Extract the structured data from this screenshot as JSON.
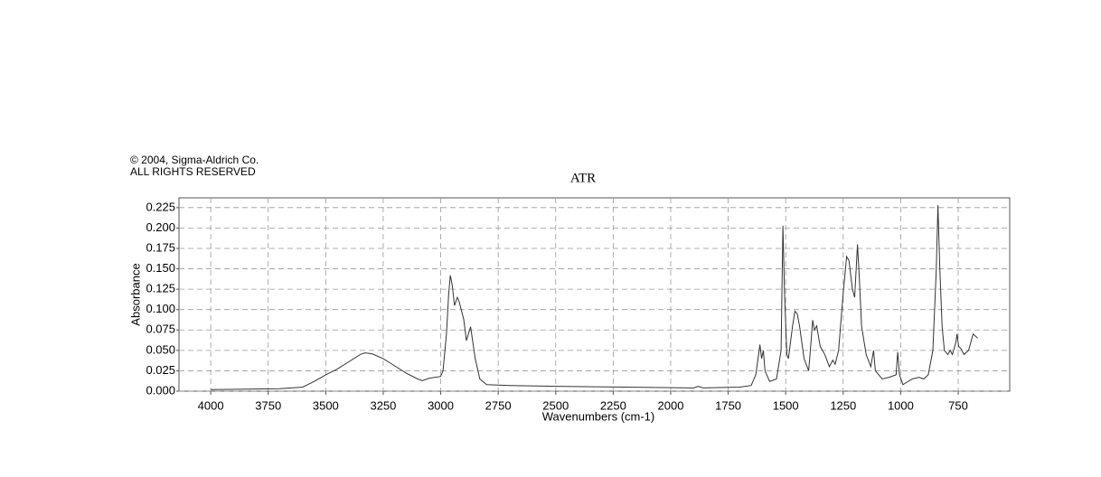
{
  "chart_data": {
    "type": "line",
    "copyright": [
      "© 2004, Sigma-Aldrich Co.",
      "ALL RIGHTS RESERVED"
    ],
    "title": "ATR",
    "xlabel": "Wavenumbers (cm-1)",
    "ylabel": "Absorbance",
    "xlim": [
      4138,
      526
    ],
    "ylim": [
      0,
      0.237
    ],
    "xticks": [
      4000,
      3750,
      3500,
      3250,
      3000,
      2750,
      2500,
      2250,
      2000,
      1750,
      1500,
      1250,
      1000,
      750
    ],
    "yticks": [
      {
        "value": 0,
        "label": "0.000"
      },
      {
        "value": 0.025,
        "label": "0.025"
      },
      {
        "value": 0.05,
        "label": "0.050"
      },
      {
        "value": 0.075,
        "label": "0.075"
      },
      {
        "value": 0.1,
        "label": "0.100"
      },
      {
        "value": 0.125,
        "label": "0.125"
      },
      {
        "value": 0.15,
        "label": "0.150"
      },
      {
        "value": 0.175,
        "label": "0.175"
      },
      {
        "value": 0.2,
        "label": "0.200"
      },
      {
        "value": 0.225,
        "label": "0.225"
      }
    ],
    "grid": true,
    "color": "#333333",
    "x": [
      4000,
      3700,
      3600,
      3550,
      3500,
      3450,
      3400,
      3350,
      3330,
      3300,
      3250,
      3200,
      3150,
      3100,
      3080,
      3050,
      3000,
      2990,
      2975,
      2965,
      2958,
      2950,
      2940,
      2928,
      2920,
      2900,
      2888,
      2870,
      2850,
      2830,
      2800,
      2700,
      2500,
      2200,
      1900,
      1880,
      1860,
      1700,
      1650,
      1630,
      1612,
      1605,
      1597,
      1590,
      1570,
      1540,
      1520,
      1512,
      1505,
      1495,
      1488,
      1470,
      1460,
      1450,
      1440,
      1420,
      1400,
      1390,
      1383,
      1375,
      1365,
      1350,
      1330,
      1310,
      1295,
      1285,
      1270,
      1250,
      1235,
      1225,
      1210,
      1200,
      1188,
      1180,
      1170,
      1150,
      1130,
      1118,
      1110,
      1080,
      1050,
      1020,
      1013,
      1005,
      990,
      950,
      920,
      900,
      880,
      860,
      845,
      838,
      830,
      820,
      810,
      795,
      785,
      775,
      760,
      755,
      748,
      738,
      725,
      705,
      685,
      665
    ],
    "values": [
      0.002,
      0.003,
      0.005,
      0.012,
      0.02,
      0.027,
      0.036,
      0.045,
      0.047,
      0.046,
      0.04,
      0.031,
      0.022,
      0.015,
      0.013,
      0.016,
      0.018,
      0.025,
      0.07,
      0.12,
      0.142,
      0.13,
      0.105,
      0.115,
      0.11,
      0.088,
      0.062,
      0.079,
      0.04,
      0.015,
      0.008,
      0.007,
      0.006,
      0.005,
      0.004,
      0.006,
      0.004,
      0.005,
      0.007,
      0.02,
      0.057,
      0.04,
      0.05,
      0.025,
      0.012,
      0.015,
      0.05,
      0.203,
      0.12,
      0.045,
      0.04,
      0.08,
      0.098,
      0.095,
      0.08,
      0.04,
      0.025,
      0.06,
      0.087,
      0.075,
      0.08,
      0.055,
      0.045,
      0.03,
      0.038,
      0.033,
      0.05,
      0.12,
      0.165,
      0.16,
      0.125,
      0.115,
      0.18,
      0.14,
      0.08,
      0.045,
      0.03,
      0.05,
      0.025,
      0.015,
      0.017,
      0.02,
      0.048,
      0.02,
      0.008,
      0.015,
      0.017,
      0.015,
      0.02,
      0.05,
      0.15,
      0.228,
      0.15,
      0.08,
      0.05,
      0.045,
      0.05,
      0.045,
      0.06,
      0.07,
      0.055,
      0.052,
      0.045,
      0.05,
      0.07,
      0.065
    ]
  }
}
